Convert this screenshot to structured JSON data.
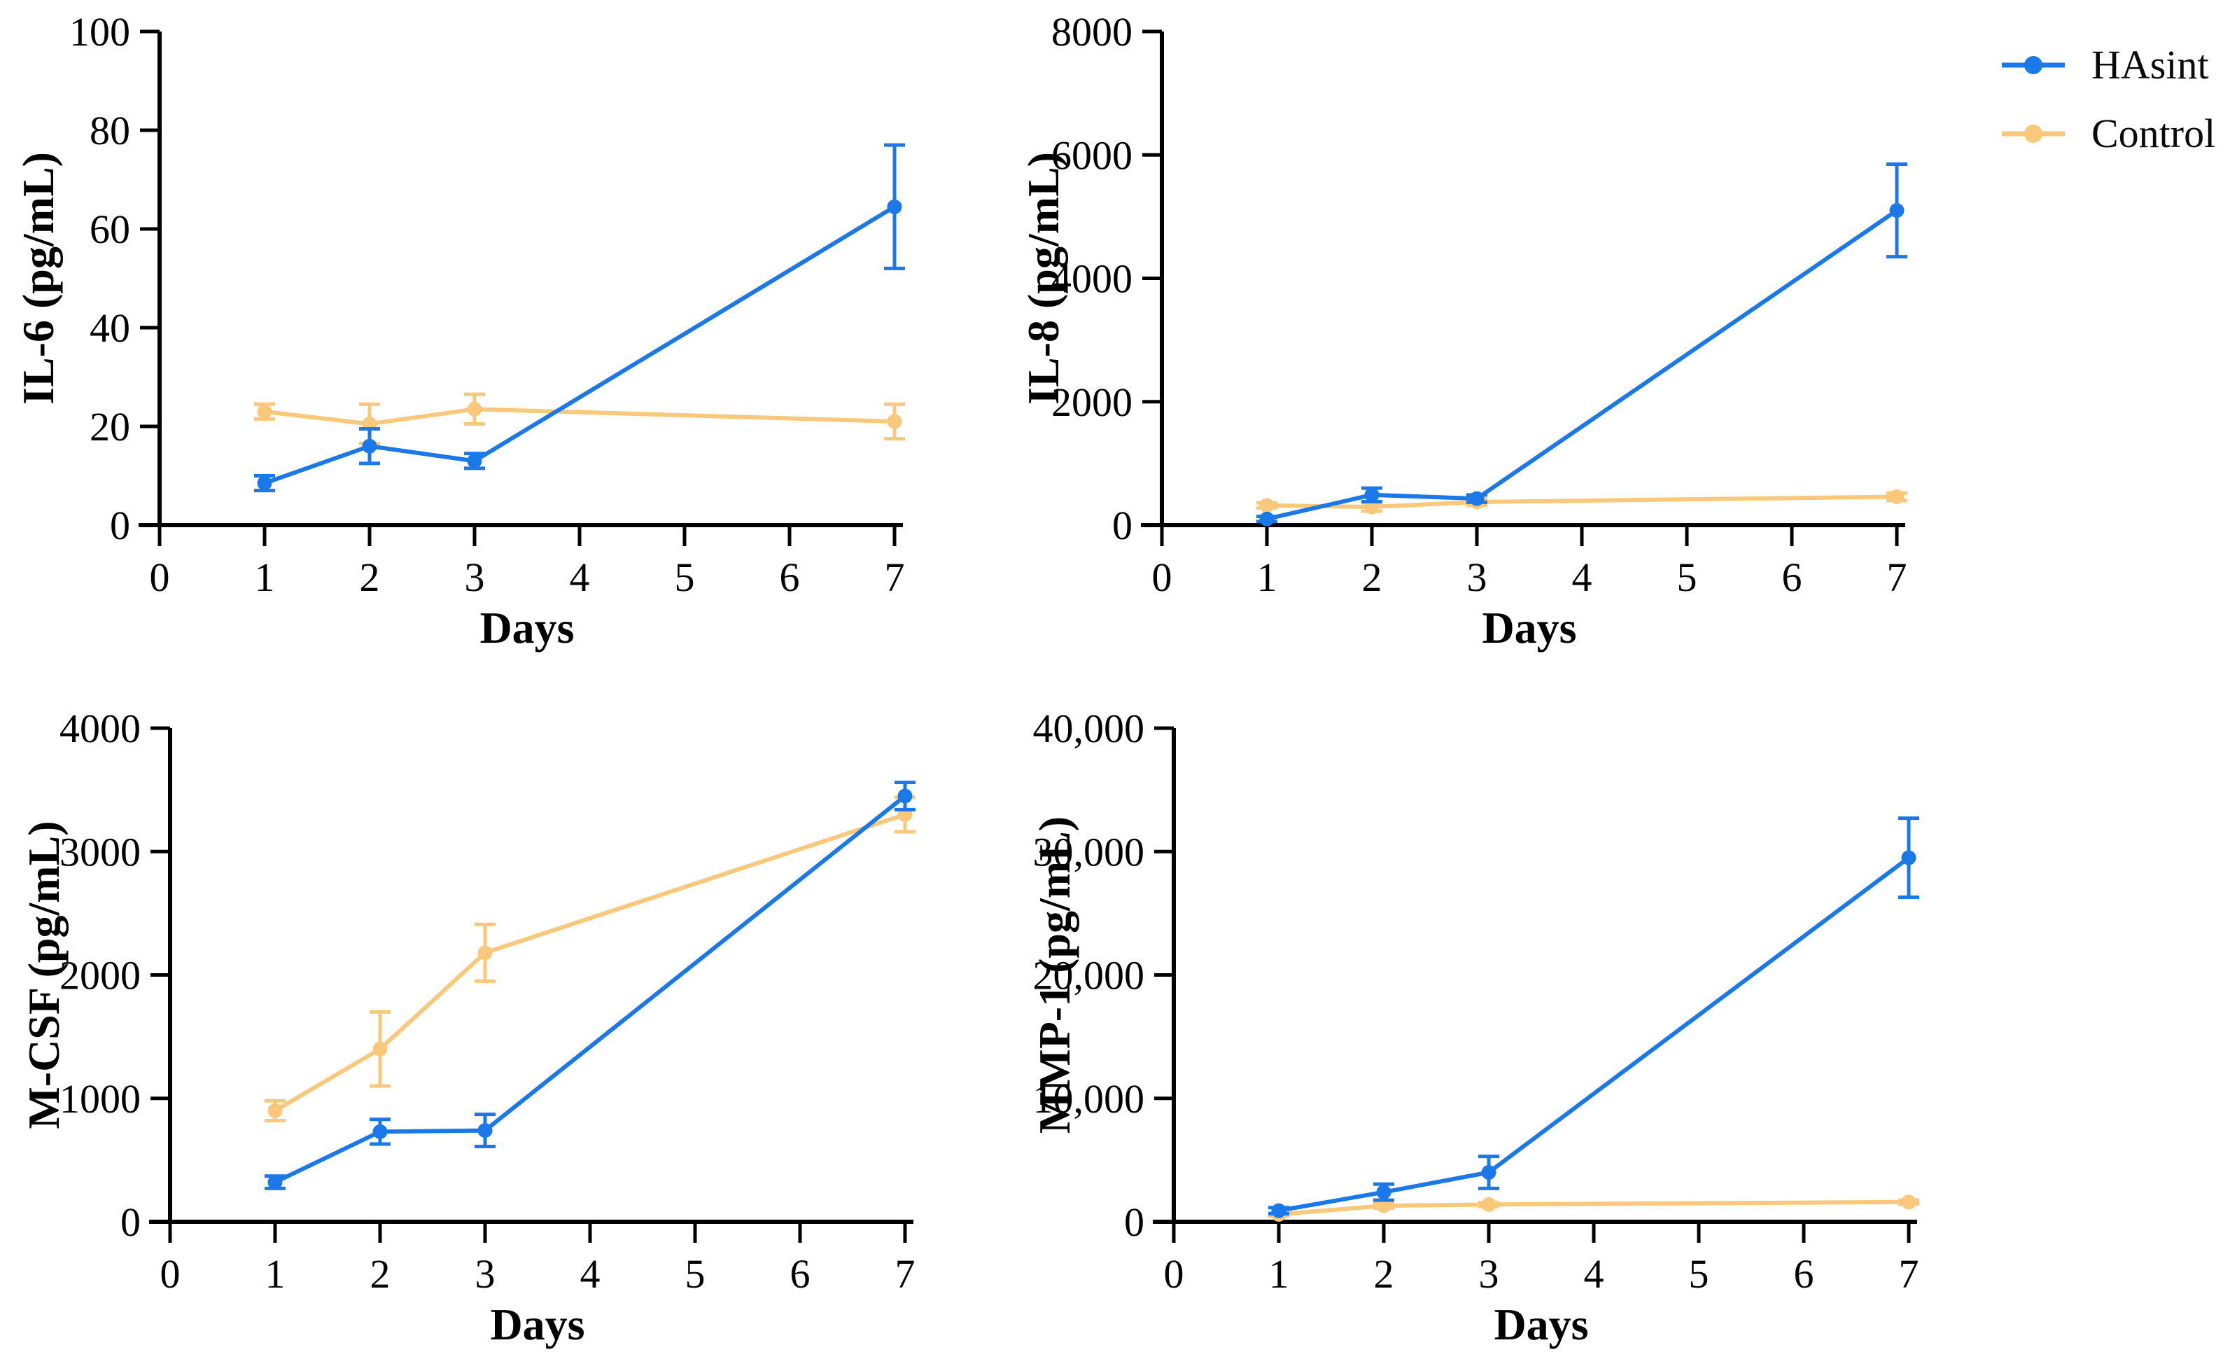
{
  "figure": {
    "background": "#ffffff",
    "layout": "2x2-grid-of-line-charts",
    "x_axis_title": "Days"
  },
  "legend": {
    "position": "top-right",
    "entries": [
      {
        "label": "HAsint",
        "color": "#1B78E8"
      },
      {
        "label": "Control",
        "color": "#FAC87A"
      }
    ]
  },
  "chart_data": [
    {
      "id": "il6",
      "type": "line",
      "title": "",
      "xlabel": "Days",
      "ylabel": "IL-6 (pg/mL)",
      "x": [
        1,
        2,
        3,
        7
      ],
      "xticks": [
        0,
        1,
        2,
        3,
        4,
        5,
        6,
        7
      ],
      "xlim": [
        0,
        7.2
      ],
      "ylim": [
        0,
        100
      ],
      "yticks": [
        0,
        20,
        40,
        60,
        80,
        100
      ],
      "ytick_labels": [
        "0",
        "20",
        "40",
        "60",
        "80",
        "100"
      ],
      "grid": false,
      "series": [
        {
          "name": "HAsint",
          "color": "#1B78E8",
          "marker": "circle",
          "values": [
            8.5,
            16,
            13,
            64.5
          ],
          "errors": [
            1.5,
            3.5,
            1.5,
            12.5
          ]
        },
        {
          "name": "Control",
          "color": "#FAC87A",
          "marker": "circle",
          "values": [
            23,
            20.5,
            23.5,
            21
          ],
          "errors": [
            1.5,
            4,
            3,
            3.5
          ]
        }
      ]
    },
    {
      "id": "il8",
      "type": "line",
      "title": "",
      "xlabel": "Days",
      "ylabel": "IL-8 (pg/mL)",
      "x": [
        1,
        2,
        3,
        7
      ],
      "xticks": [
        0,
        1,
        2,
        3,
        4,
        5,
        6,
        7
      ],
      "xlim": [
        0,
        7.2
      ],
      "ylim": [
        0,
        8000
      ],
      "yticks": [
        0,
        2000,
        4000,
        6000,
        8000
      ],
      "ytick_labels": [
        "0",
        "2000",
        "4000",
        "6000",
        "8000"
      ],
      "grid": false,
      "series": [
        {
          "name": "HAsint",
          "color": "#1B78E8",
          "marker": "circle",
          "values": [
            100,
            490,
            430,
            5100
          ],
          "errors": [
            40,
            110,
            60,
            750
          ]
        },
        {
          "name": "Control",
          "color": "#FAC87A",
          "marker": "circle",
          "values": [
            320,
            295,
            375,
            460
          ],
          "errors": [
            40,
            70,
            50,
            60
          ]
        }
      ]
    },
    {
      "id": "mcsf",
      "type": "line",
      "title": "",
      "xlabel": "Days",
      "ylabel": "M-CSF (pg/mL)",
      "x": [
        1,
        2,
        3,
        7
      ],
      "xticks": [
        0,
        1,
        2,
        3,
        4,
        5,
        6,
        7
      ],
      "xlim": [
        0,
        7.2
      ],
      "ylim": [
        0,
        4000
      ],
      "yticks": [
        0,
        1000,
        2000,
        3000,
        4000
      ],
      "ytick_labels": [
        "0",
        "1000",
        "2000",
        "3000",
        "4000"
      ],
      "grid": false,
      "series": [
        {
          "name": "HAsint",
          "color": "#1B78E8",
          "marker": "circle",
          "values": [
            320,
            730,
            740,
            3450
          ],
          "errors": [
            50,
            100,
            130,
            110
          ]
        },
        {
          "name": "Control",
          "color": "#FAC87A",
          "marker": "circle",
          "values": [
            900,
            1400,
            2180,
            3300
          ],
          "errors": [
            80,
            300,
            230,
            140
          ]
        }
      ]
    },
    {
      "id": "mmp1",
      "type": "line",
      "title": "",
      "xlabel": "Days",
      "ylabel": "MMP-1 (pg/mL)",
      "x": [
        1,
        2,
        3,
        7
      ],
      "xticks": [
        0,
        1,
        2,
        3,
        4,
        5,
        6,
        7
      ],
      "xlim": [
        0,
        7.2
      ],
      "ylim": [
        0,
        40000
      ],
      "yticks": [
        0,
        10000,
        20000,
        30000,
        40000
      ],
      "ytick_labels": [
        "0",
        "10,000",
        "20,000",
        "30,000",
        "40,000"
      ],
      "grid": false,
      "series": [
        {
          "name": "HAsint",
          "color": "#1B78E8",
          "marker": "circle",
          "values": [
            900,
            2400,
            4000,
            29500
          ],
          "errors": [
            250,
            650,
            1300,
            3200
          ]
        },
        {
          "name": "Control",
          "color": "#FAC87A",
          "marker": "circle",
          "values": [
            600,
            1300,
            1400,
            1600
          ],
          "errors": [
            120,
            200,
            150,
            150
          ]
        }
      ]
    }
  ]
}
